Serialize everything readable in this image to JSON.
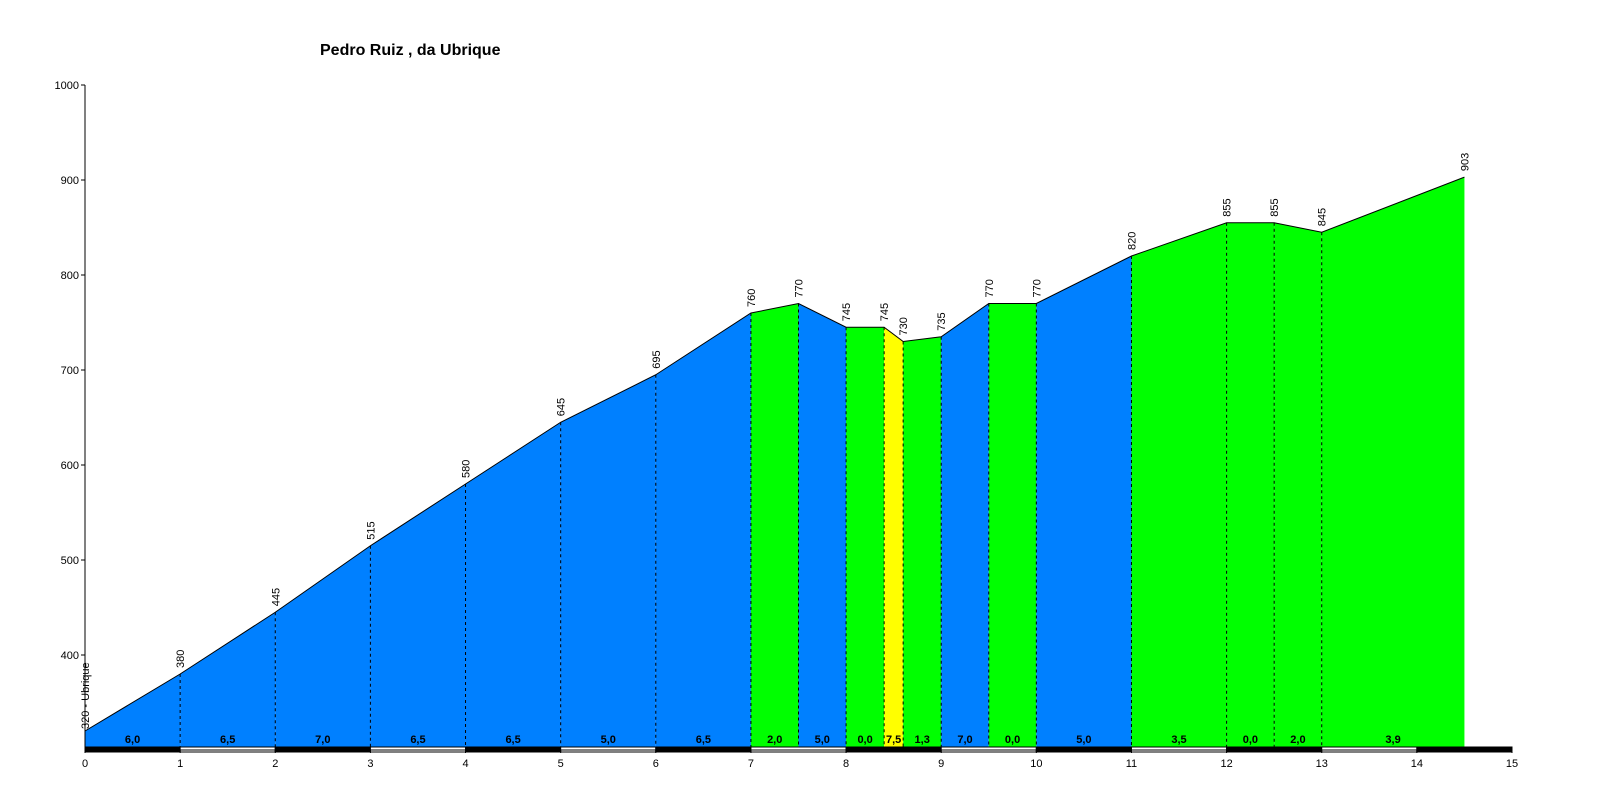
{
  "chart_data": {
    "type": "area",
    "title": "Pedro Ruiz , da Ubrique",
    "xlabel": "",
    "ylabel": "",
    "xlim": [
      0,
      15
    ],
    "ylim": [
      300,
      1000
    ],
    "x_ticks": [
      "0",
      "1",
      "2",
      "3",
      "4",
      "5",
      "6",
      "7",
      "8",
      "9",
      "10",
      "11",
      "12",
      "13",
      "14",
      "15"
    ],
    "y_ticks": [
      "400",
      "500",
      "600",
      "700",
      "800",
      "900",
      "1000"
    ],
    "start_label": "320 - Ubrique",
    "points": [
      {
        "x": 0,
        "y": 320,
        "label": "320 - Ubrique"
      },
      {
        "x": 1,
        "y": 380,
        "label": "380"
      },
      {
        "x": 2,
        "y": 445,
        "label": "445"
      },
      {
        "x": 3,
        "y": 515,
        "label": "515"
      },
      {
        "x": 4,
        "y": 580,
        "label": "580"
      },
      {
        "x": 5,
        "y": 645,
        "label": "645"
      },
      {
        "x": 6,
        "y": 695,
        "label": "695"
      },
      {
        "x": 7,
        "y": 760,
        "label": "760"
      },
      {
        "x": 7.5,
        "y": 770,
        "label": "770"
      },
      {
        "x": 8,
        "y": 745,
        "label": "745"
      },
      {
        "x": 8.4,
        "y": 745,
        "label": "745"
      },
      {
        "x": 8.6,
        "y": 730,
        "label": "730"
      },
      {
        "x": 9,
        "y": 735,
        "label": "735"
      },
      {
        "x": 9.5,
        "y": 770,
        "label": "770"
      },
      {
        "x": 10,
        "y": 770,
        "label": "770"
      },
      {
        "x": 11,
        "y": 820,
        "label": "820"
      },
      {
        "x": 12,
        "y": 855,
        "label": "855"
      },
      {
        "x": 12.5,
        "y": 855,
        "label": "855"
      },
      {
        "x": 13,
        "y": 845,
        "label": "845"
      },
      {
        "x": 14.5,
        "y": 903,
        "label": "903"
      }
    ],
    "segments": [
      {
        "from": 0,
        "to": 1,
        "grade": "6,0",
        "color": "#0080ff"
      },
      {
        "from": 1,
        "to": 2,
        "grade": "6,5",
        "color": "#0080ff"
      },
      {
        "from": 2,
        "to": 3,
        "grade": "7,0",
        "color": "#0080ff"
      },
      {
        "from": 3,
        "to": 4,
        "grade": "6,5",
        "color": "#0080ff"
      },
      {
        "from": 4,
        "to": 5,
        "grade": "6,5",
        "color": "#0080ff"
      },
      {
        "from": 5,
        "to": 6,
        "grade": "5,0",
        "color": "#0080ff"
      },
      {
        "from": 6,
        "to": 7,
        "grade": "6,5",
        "color": "#0080ff"
      },
      {
        "from": 7,
        "to": 7.5,
        "grade": "2,0",
        "color": "#00ff00"
      },
      {
        "from": 7.5,
        "to": 8,
        "grade": "5,0",
        "color": "#0080ff"
      },
      {
        "from": 8,
        "to": 8.4,
        "grade": "0,0",
        "color": "#00ff00"
      },
      {
        "from": 8.4,
        "to": 8.6,
        "grade": "7,5",
        "color": "#ffff00"
      },
      {
        "from": 8.6,
        "to": 9,
        "grade": "1,3",
        "color": "#00ff00"
      },
      {
        "from": 9,
        "to": 9.5,
        "grade": "7,0",
        "color": "#0080ff"
      },
      {
        "from": 9.5,
        "to": 10,
        "grade": "0,0",
        "color": "#00ff00"
      },
      {
        "from": 10,
        "to": 11,
        "grade": "5,0",
        "color": "#0080ff"
      },
      {
        "from": 11,
        "to": 12,
        "grade": "3,5",
        "color": "#00ff00"
      },
      {
        "from": 12,
        "to": 12.5,
        "grade": "0,0",
        "color": "#00ff00"
      },
      {
        "from": 12.5,
        "to": 13,
        "grade": "2,0",
        "color": "#00ff00"
      },
      {
        "from": 13,
        "to": 14.5,
        "grade": "3,9",
        "color": "#00ff00"
      }
    ],
    "km_bar_colors": [
      "#000000",
      "#ffffff"
    ],
    "legend": "none",
    "grid": false
  }
}
